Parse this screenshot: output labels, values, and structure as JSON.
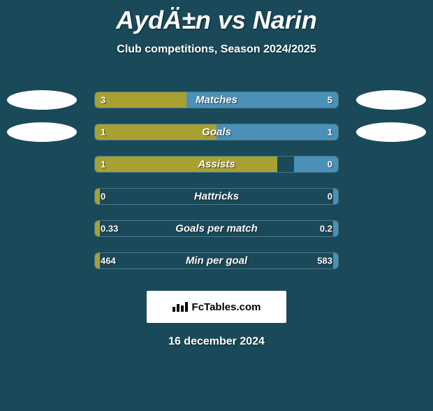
{
  "title": "AydÄ±n vs Narin",
  "subtitle": "Club competitions, Season 2024/2025",
  "date": "16 december 2024",
  "fctables_label": "FcTables.com",
  "colors": {
    "background": "#1a4a5a",
    "bar_left": "#a8a030",
    "bar_right": "#4a90b8",
    "border": "#4a7a8a",
    "ellipse": "#ffffff"
  },
  "chart": {
    "bar_container_width": 350,
    "stats": [
      {
        "label": "Matches",
        "left_val": "3",
        "right_val": "5",
        "left_pct": 37.5,
        "right_pct": 62.5,
        "show_ellipses": true
      },
      {
        "label": "Goals",
        "left_val": "1",
        "right_val": "1",
        "left_pct": 50,
        "right_pct": 50,
        "show_ellipses": true
      },
      {
        "label": "Assists",
        "left_val": "1",
        "right_val": "0",
        "left_pct": 75,
        "right_pct": 18,
        "show_ellipses": false
      },
      {
        "label": "Hattricks",
        "left_val": "0",
        "right_val": "0",
        "left_pct": 2,
        "right_pct": 2,
        "show_ellipses": false
      },
      {
        "label": "Goals per match",
        "left_val": "0.33",
        "right_val": "0.2",
        "left_pct": 2,
        "right_pct": 2,
        "show_ellipses": false
      },
      {
        "label": "Min per goal",
        "left_val": "464",
        "right_val": "583",
        "left_pct": 2,
        "right_pct": 2,
        "show_ellipses": false
      }
    ]
  }
}
